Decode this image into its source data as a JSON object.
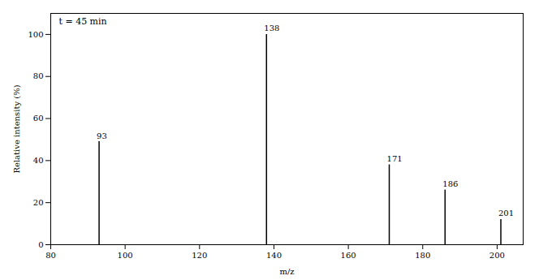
{
  "chart_data": {
    "type": "stem",
    "x": [
      93,
      138,
      171,
      186,
      201
    ],
    "values": [
      49,
      100,
      38,
      26,
      12
    ],
    "labels": [
      "93",
      "138",
      "171",
      "186",
      "201"
    ],
    "xlabel": "m/z",
    "ylabel": "Relative intensity (%)",
    "annotation": "t = 45 min",
    "xlim": [
      80,
      207
    ],
    "ylim": [
      0,
      110
    ],
    "xticks": [
      80,
      100,
      120,
      140,
      160,
      180,
      200
    ],
    "yticks": [
      0,
      20,
      40,
      60,
      80,
      100
    ],
    "color": "#000000",
    "grid": false
  }
}
